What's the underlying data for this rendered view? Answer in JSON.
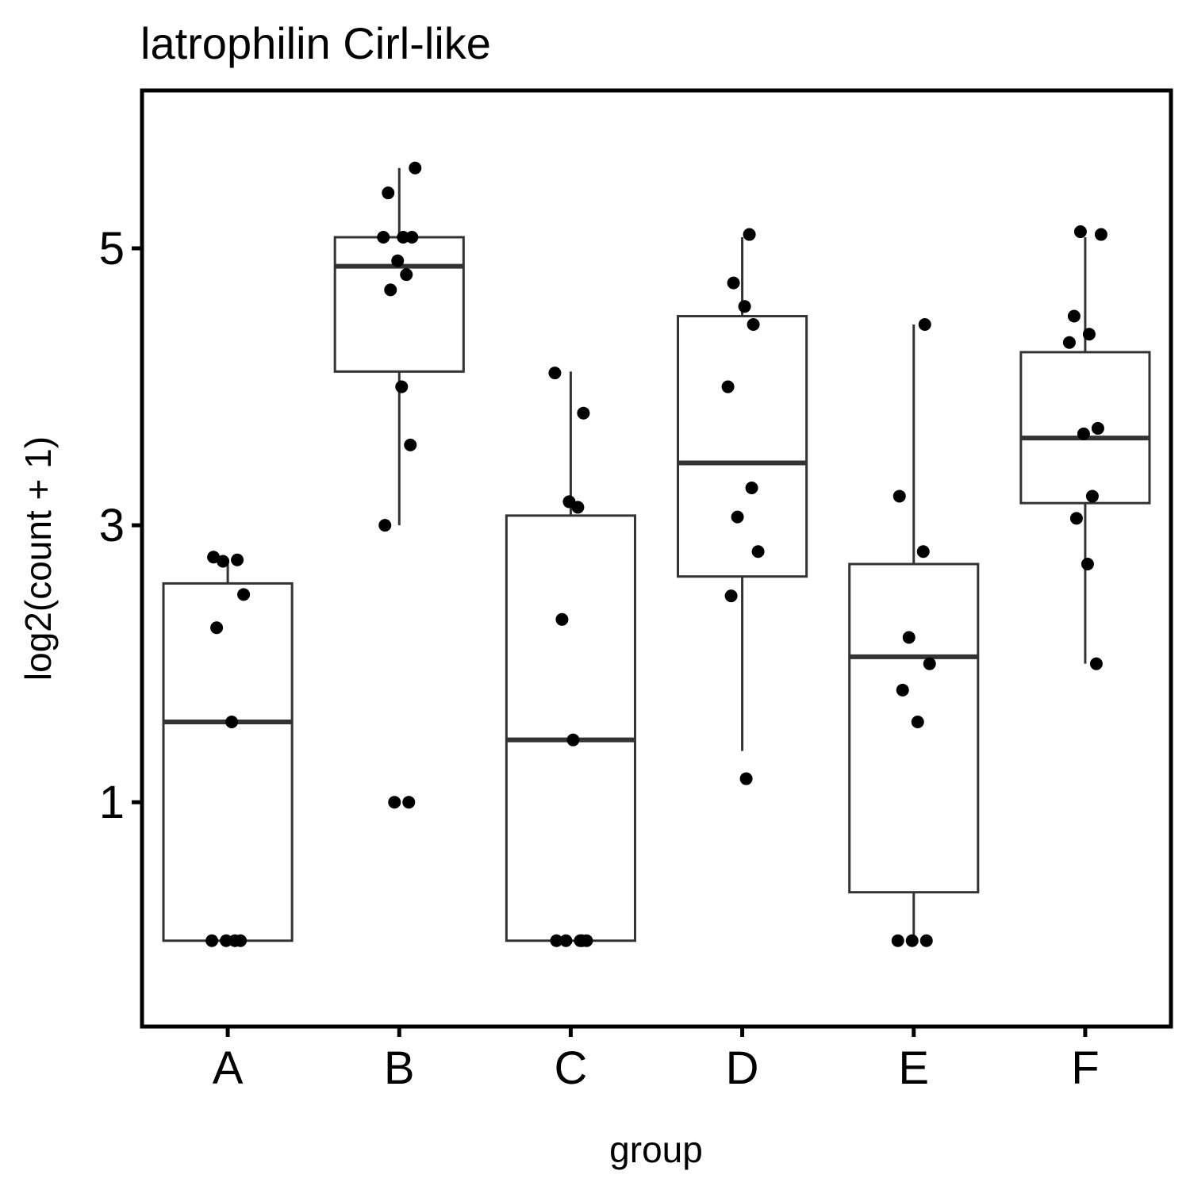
{
  "chart_data": {
    "type": "box",
    "title": "latrophilin Cirl-like",
    "xlabel": "group",
    "ylabel": "log2(count + 1)",
    "categories": [
      "A",
      "B",
      "C",
      "D",
      "E",
      "F"
    ],
    "y_ticks": [
      1,
      3,
      5
    ],
    "ylim": [
      -0.62,
      6.14
    ],
    "grid": false,
    "legend": "none",
    "boxes": [
      {
        "group": "A",
        "lower_whisker": 0.0,
        "q1": 0.0,
        "median": 1.58,
        "q3": 2.58,
        "upper_whisker": 2.72
      },
      {
        "group": "B",
        "lower_whisker": 3.0,
        "q1": 4.11,
        "median": 4.87,
        "q3": 5.08,
        "upper_whisker": 5.58
      },
      {
        "group": "C",
        "lower_whisker": 0.0,
        "q1": 0.0,
        "median": 1.45,
        "q3": 3.07,
        "upper_whisker": 4.11
      },
      {
        "group": "D",
        "lower_whisker": 1.37,
        "q1": 2.63,
        "median": 3.45,
        "q3": 4.51,
        "upper_whisker": 5.08
      },
      {
        "group": "E",
        "lower_whisker": 0.0,
        "q1": 0.35,
        "median": 2.05,
        "q3": 2.72,
        "upper_whisker": 4.45
      },
      {
        "group": "F",
        "lower_whisker": 2.0,
        "q1": 3.16,
        "median": 3.63,
        "q3": 4.25,
        "upper_whisker": 5.08
      }
    ],
    "points": [
      {
        "group": "A",
        "y": [
          2.77,
          2.75,
          2.74,
          2.5,
          2.26,
          1.58,
          0.0,
          0.0,
          0.0,
          0.0
        ]
      },
      {
        "group": "B",
        "y": [
          5.58,
          5.4,
          5.08,
          5.08,
          5.08,
          4.91,
          4.81,
          4.7,
          4.0,
          3.58,
          3.0,
          1.0,
          1.0
        ]
      },
      {
        "group": "C",
        "y": [
          4.1,
          3.81,
          3.17,
          3.13,
          2.32,
          1.45,
          0.0,
          0.0,
          0.0,
          0.0,
          0.0
        ]
      },
      {
        "group": "D",
        "y": [
          5.1,
          4.75,
          4.58,
          4.45,
          4.0,
          3.27,
          3.06,
          2.81,
          2.49,
          1.17
        ]
      },
      {
        "group": "E",
        "y": [
          4.45,
          3.21,
          2.81,
          2.19,
          2.0,
          1.81,
          1.58,
          0.0,
          0.0,
          0.0
        ]
      },
      {
        "group": "F",
        "y": [
          5.12,
          5.1,
          4.51,
          4.38,
          4.32,
          3.7,
          3.66,
          3.21,
          3.05,
          2.72,
          2.0
        ]
      }
    ]
  }
}
